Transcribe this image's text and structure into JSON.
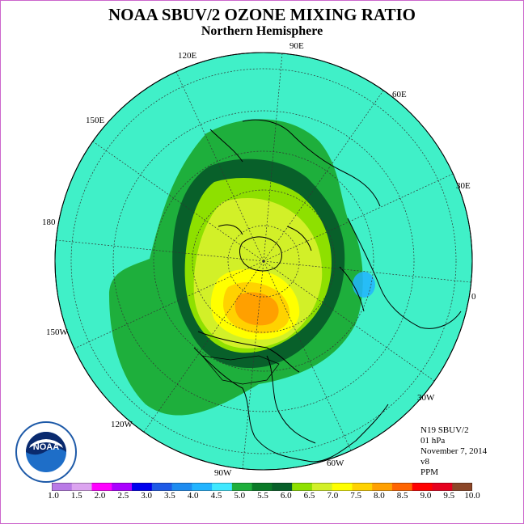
{
  "header": {
    "title": "NOAA SBUV/2 OZONE MIXING RATIO",
    "subtitle": "Northern Hemisphere"
  },
  "longitude_labels": [
    "90E",
    "60E",
    "30E",
    "0",
    "30W",
    "60W",
    "90W",
    "120W",
    "150W",
    "180",
    "150E",
    "120E"
  ],
  "info": {
    "instrument": "N19 SBUV/2",
    "pressure": "01 hPa",
    "date": "November 7, 2014",
    "version": "v8",
    "units": "PPM"
  },
  "logo": {
    "text": "NOAA",
    "icon": "noaa-logo-icon"
  },
  "colorbar": {
    "ticks": [
      "1.0",
      "1.5",
      "2.0",
      "2.5",
      "3.0",
      "3.5",
      "4.0",
      "4.5",
      "5.0",
      "5.5",
      "6.0",
      "6.5",
      "7.0",
      "7.5",
      "8.0",
      "8.5",
      "9.0",
      "9.5",
      "10.0"
    ],
    "colors": [
      "#b97ae6",
      "#dca4f0",
      "#ff00ff",
      "#aa00ff",
      "#0000ee",
      "#1e5ae6",
      "#1e8cf0",
      "#22b4ff",
      "#40e8ff",
      "#1eaf3c",
      "#0a7a28",
      "#08602a",
      "#8ee000",
      "#d2f028",
      "#ffff00",
      "#ffd200",
      "#ffa000",
      "#ff6400",
      "#ff0000",
      "#e6001e",
      "#8c4628"
    ]
  },
  "theme": {
    "background": "#40f0c8",
    "land": "#000000",
    "grid": "#333333"
  }
}
